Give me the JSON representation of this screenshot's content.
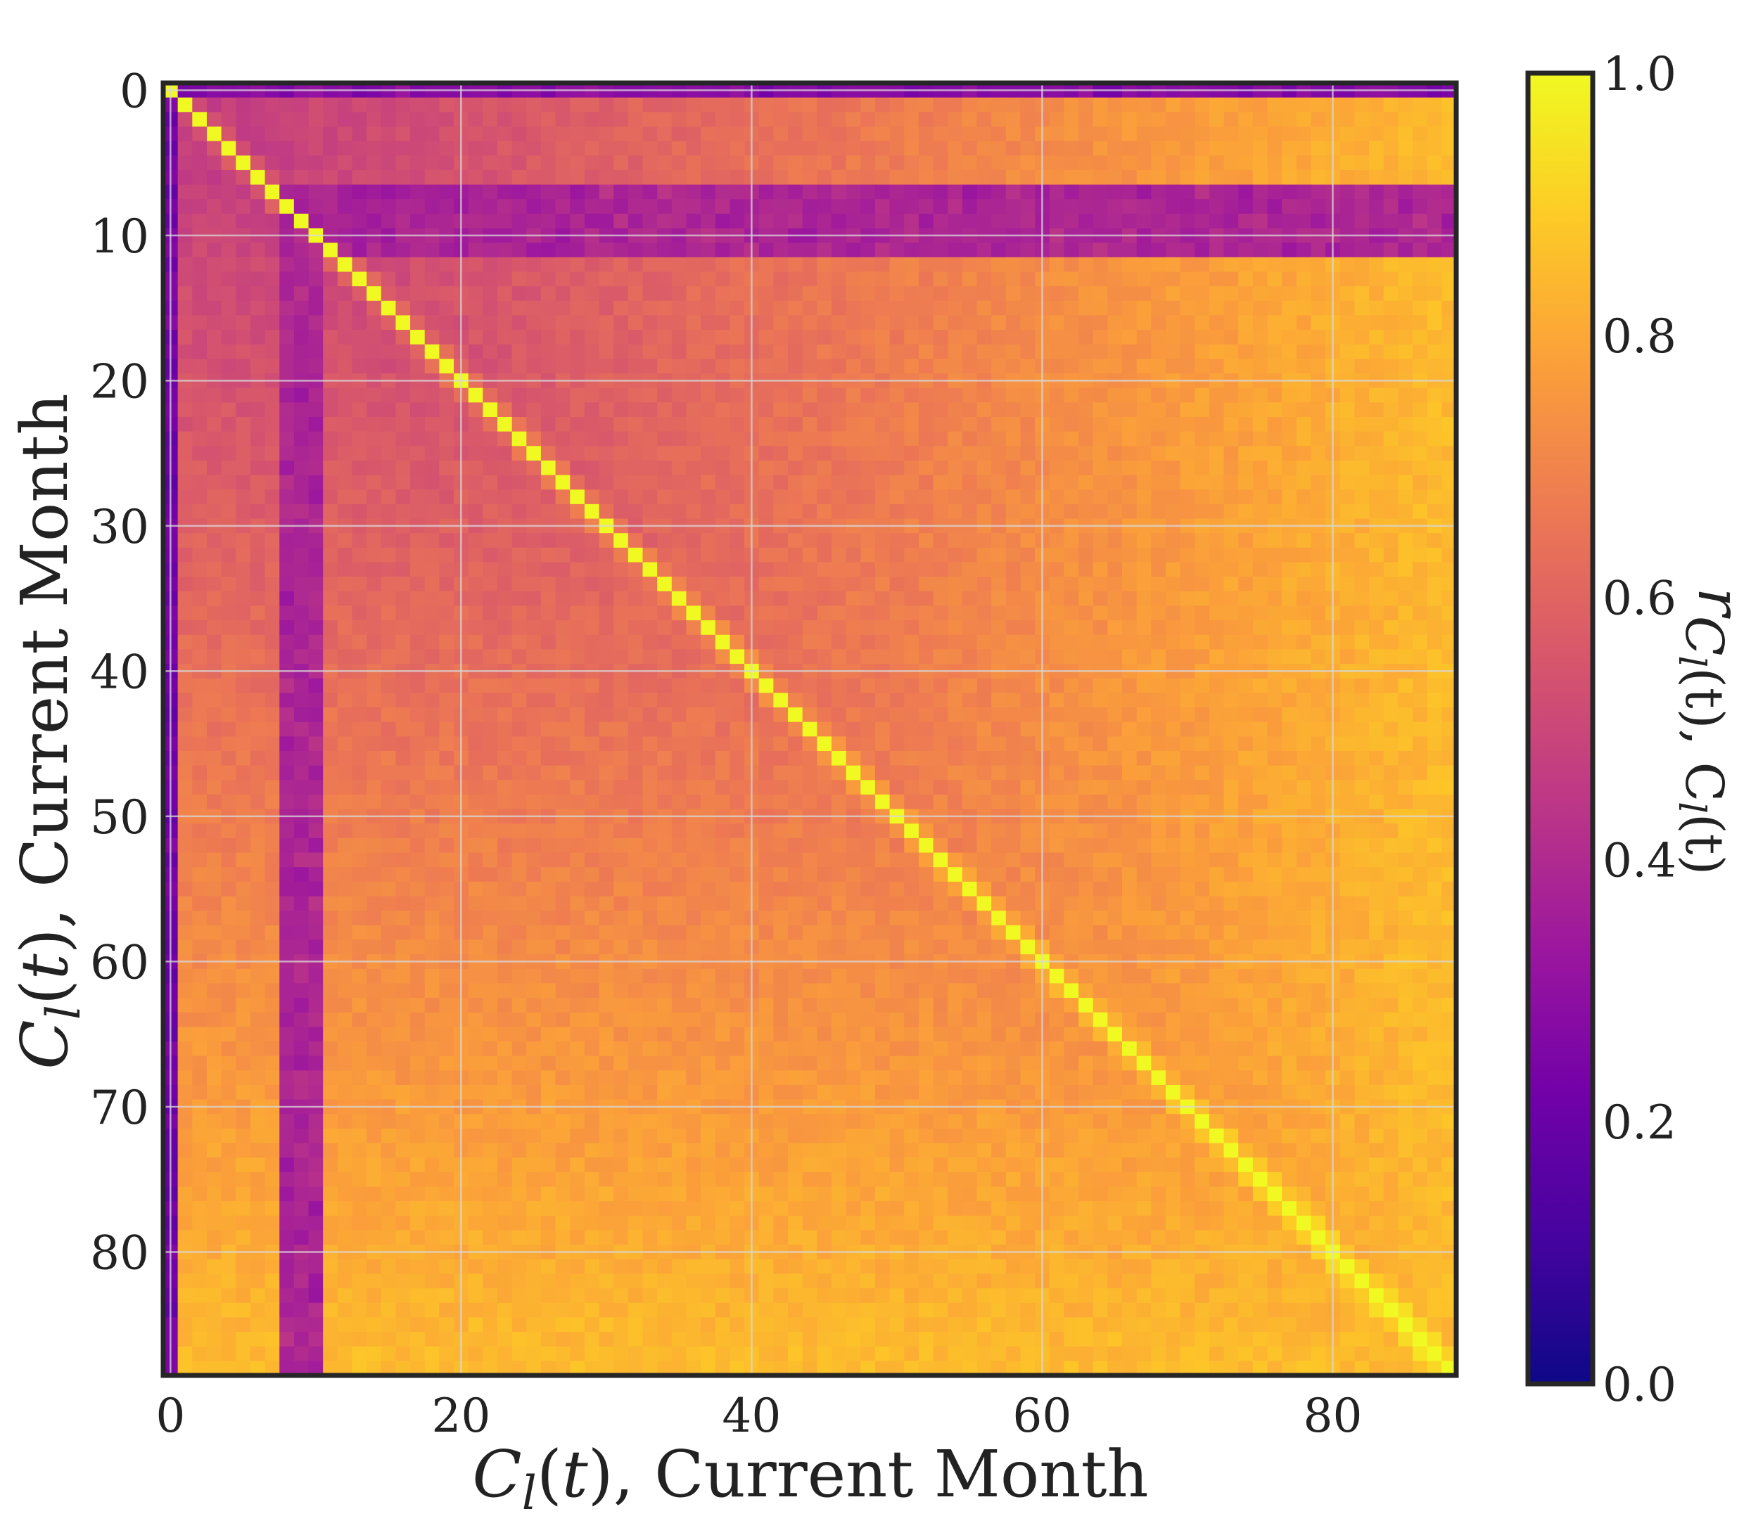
{
  "chart_data": {
    "type": "heatmap",
    "title": "",
    "description_of_matrix": "correlation matrix of C_l(t) with C_l(t), current month",
    "size": 89,
    "xlabel": {
      "prefix": "C",
      "sub": "l",
      "mid": "(",
      "var": "t",
      "suffix": "), Current Month"
    },
    "ylabel": {
      "prefix": "C",
      "sub": "l",
      "mid": "(",
      "var": "t",
      "suffix": "), Current Month"
    },
    "xticks": [
      0,
      20,
      40,
      60,
      80
    ],
    "yticks": [
      0,
      10,
      20,
      30,
      40,
      50,
      60,
      70,
      80
    ],
    "xtick_labels": [
      "0",
      "20",
      "40",
      "60",
      "80"
    ],
    "ytick_labels": [
      "0",
      "10",
      "20",
      "30",
      "40",
      "50",
      "60",
      "70",
      "80"
    ],
    "xlim": [
      -0.5,
      88.5
    ],
    "ylim": [
      88.5,
      -0.5
    ],
    "grid": true,
    "colormap": "plasma",
    "colorbar": {
      "label": {
        "r": "r",
        "sub": "C",
        "subsub": "l",
        "t1": "(t), C",
        "subsub2": "l",
        "t2": "(t)"
      },
      "vmin": 0.0,
      "vmax": 1.0,
      "ticks": [
        0.0,
        0.2,
        0.4,
        0.6,
        0.8,
        1.0
      ],
      "tick_labels": [
        "0.0",
        "0.2",
        "0.4",
        "0.6",
        "0.8",
        "1.0"
      ]
    },
    "structure": {
      "diagonal_value": 1.0,
      "far_corner_value": 0.85,
      "row0_value": 0.25,
      "col0_value": 0.2,
      "low_band_rows": [
        7,
        8,
        9,
        10,
        11
      ],
      "low_band_value": 0.35,
      "low_band_cols": [
        8,
        9,
        10
      ],
      "low_band_col_value": 0.35
    }
  },
  "colors": {
    "frame": "#262626",
    "grid": "#d9d9d9",
    "plasma": [
      "#0d0887",
      "#46039f",
      "#7201a8",
      "#9c179e",
      "#bd3786",
      "#d8576b",
      "#ed7953",
      "#fb9f3a",
      "#fdca26",
      "#f0f921"
    ]
  }
}
